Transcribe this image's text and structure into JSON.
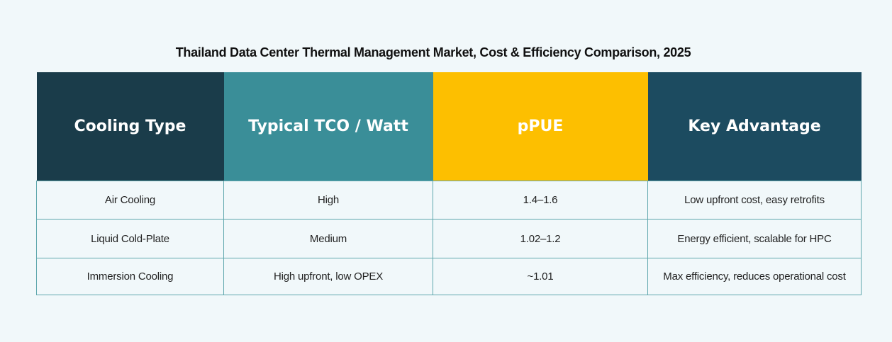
{
  "title": "Thailand Data Center Thermal Management Market, Cost & Efficiency Comparison, 2025",
  "table": {
    "headers": [
      {
        "label": "Cooling Type",
        "color": "#1a3c4a"
      },
      {
        "label": "Typical TCO / Watt",
        "color": "#3a8e98"
      },
      {
        "label": "pPUE",
        "color": "#fdbf00"
      },
      {
        "label": "Key Advantage",
        "color": "#1c4b60"
      }
    ],
    "rows": [
      [
        "Air Cooling",
        "High",
        "1.4–1.6",
        "Low upfront cost, easy retrofits"
      ],
      [
        "Liquid Cold-Plate",
        "Medium",
        "1.02–1.2",
        "Energy efficient, scalable for HPC"
      ],
      [
        "Immersion Cooling",
        "High upfront, low OPEX",
        "~1.01",
        "Max efficiency, reduces operational cost"
      ]
    ],
    "border_color": "#5fa7ad",
    "background": "#f1f8fa"
  }
}
